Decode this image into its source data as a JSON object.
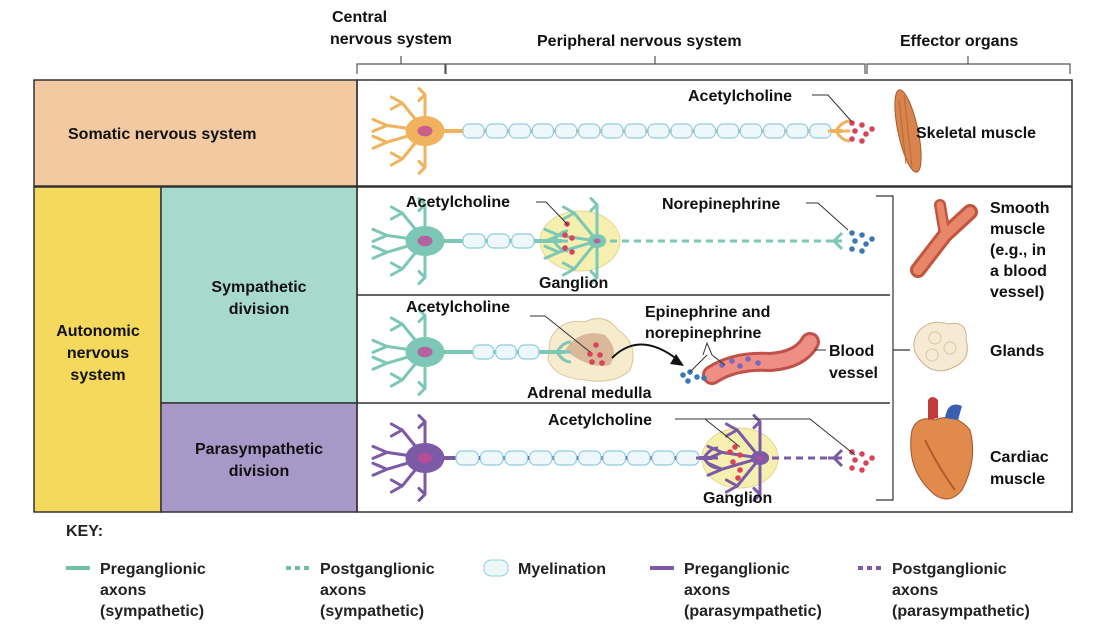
{
  "headers": {
    "cns": [
      "Central",
      "nervous system"
    ],
    "pns": "Peripheral nervous system",
    "effector": "Effector organs"
  },
  "rows": {
    "somatic": "Somatic nervous system",
    "autonomic": [
      "Autonomic",
      "nervous",
      "system"
    ],
    "sympathetic": [
      "Sympathetic",
      "division"
    ],
    "parasympathetic": [
      "Parasympathetic",
      "division"
    ]
  },
  "labels": {
    "ach_somatic": "Acetylcholine",
    "ach_symp": "Acetylcholine",
    "norepinephrine": "Norepinephrine",
    "ganglion_symp": "Ganglion",
    "ach_adrenal": "Acetylcholine",
    "epi": [
      "Epinephrine and",
      "norepinephrine"
    ],
    "adrenal": "Adrenal medulla",
    "blood_vessel": [
      "Blood",
      "vessel"
    ],
    "ach_para": "Acetylcholine",
    "ganglion_para": "Ganglion"
  },
  "effectors": {
    "skeletal": "Skeletal muscle",
    "smooth": [
      "Smooth",
      "muscle",
      "(e.g., in",
      "a blood",
      "vessel)"
    ],
    "glands": "Glands",
    "cardiac": [
      "Cardiac",
      "muscle"
    ]
  },
  "key": {
    "title": "KEY:",
    "items": [
      {
        "lines": [
          "Preganglionic",
          "axons",
          "(sympathetic)"
        ],
        "style": "solid",
        "color": "#6fbfa8"
      },
      {
        "lines": [
          "Postganglionic",
          "axons",
          "(sympathetic)"
        ],
        "style": "dashed",
        "color": "#6fbfa8"
      },
      {
        "lines": [
          "Myelination"
        ],
        "style": "myelin",
        "color": "#8fcbe0"
      },
      {
        "lines": [
          "Preganglionic",
          "axons",
          "(parasympathetic)"
        ],
        "style": "solid",
        "color": "#7b5aa6"
      },
      {
        "lines": [
          "Postganglionic",
          "axons",
          "(parasympathetic)"
        ],
        "style": "dashed",
        "color": "#7b5aa6"
      }
    ]
  },
  "colors": {
    "somatic_bg": "#f2c9a1",
    "autonomic_bg": "#f5d95c",
    "sympathetic_bg": "#a8d9cd",
    "parasympathetic_bg": "#a898c8",
    "somatic_neuron": "#f0b25c",
    "sympathetic_neuron": "#7cc7b5",
    "parasympathetic_neuron": "#7b5aa6",
    "acetylcholine": "#d9435a",
    "norepinephrine": "#3a78b8",
    "myelin": "#8fcbe0",
    "ganglion": "#f6f0b0"
  }
}
